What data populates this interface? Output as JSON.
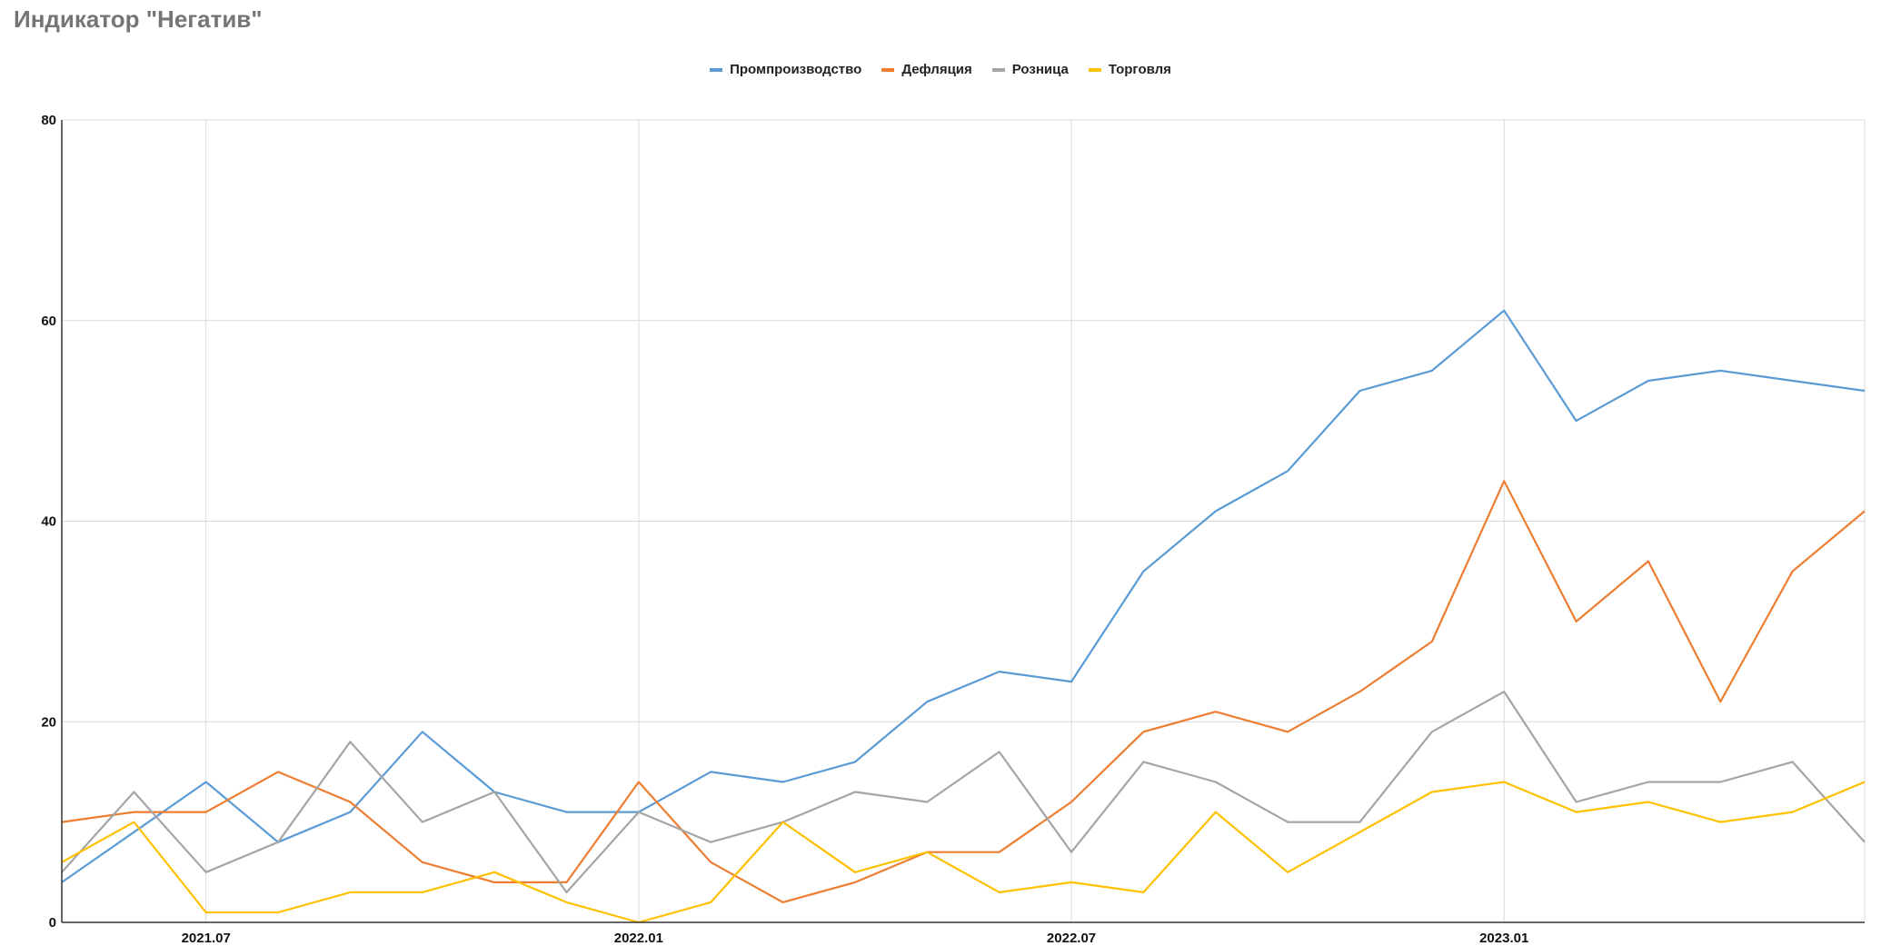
{
  "chart_data": {
    "type": "line",
    "title": "Индикатор \"Негатив\"",
    "x": [
      "2021.05",
      "2021.06",
      "2021.07",
      "2021.08",
      "2021.09",
      "2021.10",
      "2021.11",
      "2021.12",
      "2022.01",
      "2022.02",
      "2022.03",
      "2022.04",
      "2022.05",
      "2022.06",
      "2022.07",
      "2022.08",
      "2022.09",
      "2022.10",
      "2022.11",
      "2022.12",
      "2023.01",
      "2023.02",
      "2023.03",
      "2023.04",
      "2023.05",
      "2023.06"
    ],
    "x_ticks": [
      "2021.07",
      "2022.01",
      "2022.07",
      "2023.01"
    ],
    "ylim": [
      0,
      80
    ],
    "y_ticks": [
      0,
      20,
      40,
      60,
      80
    ],
    "grid": true,
    "legend_position": "top-center",
    "series": [
      {
        "name": "Промпроизводство",
        "color": "#5b9bd5",
        "values": [
          4,
          9,
          14,
          8,
          11,
          19,
          13,
          11,
          11,
          15,
          14,
          16,
          22,
          25,
          24,
          35,
          41,
          45,
          53,
          55,
          61,
          50,
          54,
          55,
          54,
          53
        ]
      },
      {
        "name": "Дефляция",
        "color": "#ed7d31",
        "values": [
          10,
          11,
          11,
          15,
          12,
          6,
          4,
          4,
          14,
          6,
          2,
          4,
          7,
          7,
          12,
          19,
          21,
          19,
          23,
          28,
          44,
          30,
          36,
          22,
          35,
          41
        ]
      },
      {
        "name": "Розница",
        "color": "#a5a5a5",
        "values": [
          5,
          13,
          5,
          8,
          18,
          10,
          13,
          3,
          11,
          8,
          10,
          13,
          12,
          17,
          7,
          16,
          14,
          10,
          10,
          19,
          23,
          12,
          14,
          14,
          16,
          8
        ]
      },
      {
        "name": "Торговля",
        "color": "#ffc000",
        "values": [
          6,
          10,
          1,
          1,
          3,
          3,
          5,
          2,
          0,
          2,
          10,
          5,
          7,
          3,
          4,
          3,
          11,
          5,
          9,
          13,
          14,
          11,
          12,
          10,
          11,
          14
        ]
      }
    ]
  }
}
